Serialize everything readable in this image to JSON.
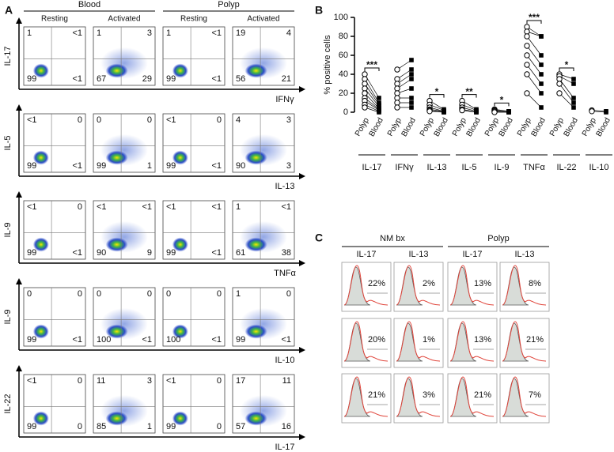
{
  "panel_a": {
    "letter": "A",
    "groups": [
      "Blood",
      "Polyp"
    ],
    "columns": [
      "Resting",
      "Activated",
      "Resting",
      "Activated"
    ],
    "rows": [
      {
        "y_label": "IL-17",
        "x_label": "IFNγ",
        "plots": [
          [
            "1",
            "<1",
            "99",
            "<1"
          ],
          [
            "1",
            "3",
            "67",
            "29"
          ],
          [
            "1",
            "<1",
            "99",
            "<1"
          ],
          [
            "19",
            "4",
            "56",
            "21"
          ]
        ]
      },
      {
        "y_label": "IL-5",
        "x_label": "IL-13",
        "plots": [
          [
            "<1",
            "0",
            "99",
            "<1"
          ],
          [
            "0",
            "0",
            "99",
            "1"
          ],
          [
            "<1",
            "0",
            "99",
            "<1"
          ],
          [
            "4",
            "3",
            "90",
            "3"
          ]
        ]
      },
      {
        "y_label": "IL-9",
        "x_label": "TNFα",
        "plots": [
          [
            "<1",
            "0",
            "99",
            "<1"
          ],
          [
            "<1",
            "<1",
            "90",
            "9"
          ],
          [
            "<1",
            "<1",
            "99",
            "<1"
          ],
          [
            "1",
            "<1",
            "61",
            "38"
          ]
        ]
      },
      {
        "y_label": "IL-9",
        "x_label": "IL-10",
        "plots": [
          [
            "0",
            "0",
            "99",
            "<1"
          ],
          [
            "0",
            "0",
            "100",
            "<1"
          ],
          [
            "0",
            "0",
            "100",
            "<1"
          ],
          [
            "1",
            "0",
            "99",
            "<1"
          ]
        ]
      },
      {
        "y_label": "IL-22",
        "x_label": "IL-17",
        "plots": [
          [
            "<1",
            "0",
            "99",
            "0"
          ],
          [
            "11",
            "3",
            "85",
            "1"
          ],
          [
            "<1",
            "0",
            "99",
            "0"
          ],
          [
            "17",
            "11",
            "57",
            "16"
          ]
        ]
      }
    ]
  },
  "chart_data": {
    "type": "paired-dot",
    "letter": "B",
    "y_label": "% positive cells",
    "categories": [
      "IL-17",
      "IFNγ",
      "IL-13",
      "IL-5",
      "IL-9",
      "TNFα",
      "IL-22",
      "IL-10"
    ],
    "series": [
      {
        "name": "Polyp",
        "color": "#000000",
        "marker": "open-circle",
        "values": [
          [
            40,
            35,
            30,
            25,
            20,
            15,
            12,
            8,
            5
          ],
          [
            45,
            35,
            30,
            25,
            20,
            15,
            10,
            5
          ],
          [
            12,
            8,
            5,
            3,
            2,
            1
          ],
          [
            12,
            8,
            5,
            3,
            2
          ],
          [
            3,
            2,
            1,
            1,
            0
          ],
          [
            90,
            85,
            80,
            70,
            60,
            50,
            40,
            20
          ],
          [
            40,
            38,
            35,
            30,
            20
          ],
          [
            2,
            1
          ]
        ]
      },
      {
        "name": "Blood",
        "color": "#000000",
        "marker": "filled-square",
        "values": [
          [
            15,
            10,
            8,
            6,
            4,
            3,
            2,
            1,
            0
          ],
          [
            55,
            45,
            40,
            35,
            25,
            15,
            10,
            5
          ],
          [
            3,
            2,
            1,
            1,
            0,
            0
          ],
          [
            3,
            2,
            1,
            0,
            0
          ],
          [
            1,
            1,
            0,
            0,
            0
          ],
          [
            80,
            80,
            60,
            50,
            40,
            30,
            20,
            5
          ],
          [
            35,
            30,
            15,
            10,
            5
          ],
          [
            1,
            0
          ]
        ]
      }
    ],
    "significance": [
      "***",
      null,
      "*",
      "**",
      "*",
      "***",
      "*",
      null
    ],
    "ylim": [
      0,
      100
    ],
    "yticks": [
      0,
      20,
      40,
      60,
      80,
      100
    ]
  },
  "panel_c": {
    "letter": "C",
    "groups": [
      {
        "name": "NM bx",
        "columns": [
          {
            "label": "IL-17",
            "percents": [
              "22%",
              "20%",
              "21%"
            ]
          },
          {
            "label": "IL-13",
            "percents": [
              "2%",
              "1%",
              "3%"
            ]
          }
        ]
      },
      {
        "name": "Polyp",
        "columns": [
          {
            "label": "IL-17",
            "percents": [
              "13%",
              "13%",
              "21%"
            ]
          },
          {
            "label": "IL-13",
            "percents": [
              "8%",
              "21%",
              "7%"
            ]
          }
        ]
      }
    ]
  }
}
